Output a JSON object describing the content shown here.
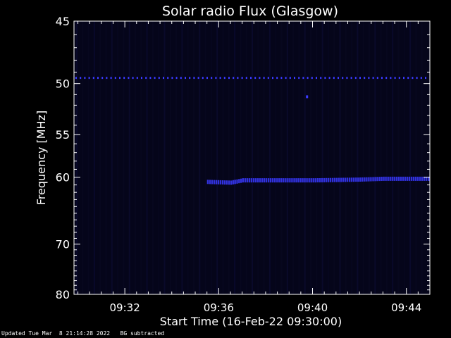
{
  "chart_data": {
    "type": "heatmap",
    "title": "Solar radio Flux (Glasgow)",
    "xlabel": "Start Time (16-Feb-22 09:30:00)",
    "ylabel": "Frequency [MHz]",
    "xlim": [
      "09:29:50",
      "09:45:00"
    ],
    "ylim": [
      45,
      80
    ],
    "y_scale": "reciprocal",
    "x_ticks": [
      "09:32",
      "09:36",
      "09:40",
      "09:44"
    ],
    "y_ticks": [
      45,
      50,
      55,
      60,
      70,
      80
    ],
    "colormap": "black-blue",
    "features": [
      {
        "kind": "dotted_line",
        "freq_mhz": 49.5,
        "x_start": "09:29:50",
        "x_end": "09:45:00"
      },
      {
        "kind": "emission_band",
        "points": [
          {
            "t": "09:35:30",
            "freq_mhz": 60.6
          },
          {
            "t": "09:36:30",
            "freq_mhz": 60.7
          },
          {
            "t": "09:37:00",
            "freq_mhz": 60.4
          },
          {
            "t": "09:38:00",
            "freq_mhz": 60.4
          },
          {
            "t": "09:40:00",
            "freq_mhz": 60.4
          },
          {
            "t": "09:42:00",
            "freq_mhz": 60.3
          },
          {
            "t": "09:43:00",
            "freq_mhz": 60.2
          },
          {
            "t": "09:45:00",
            "freq_mhz": 60.2
          }
        ]
      },
      {
        "kind": "spot",
        "t": "09:39:45",
        "freq_mhz": 51.2
      }
    ]
  },
  "footer": {
    "updated": "Updated Tue Mar  8 21:14:28 2022",
    "note": "BG subtracted"
  },
  "colors": {
    "background": "#000000",
    "plot_background": "#05051a",
    "emission": "#3a3aff",
    "foreground": "#ffffff"
  }
}
